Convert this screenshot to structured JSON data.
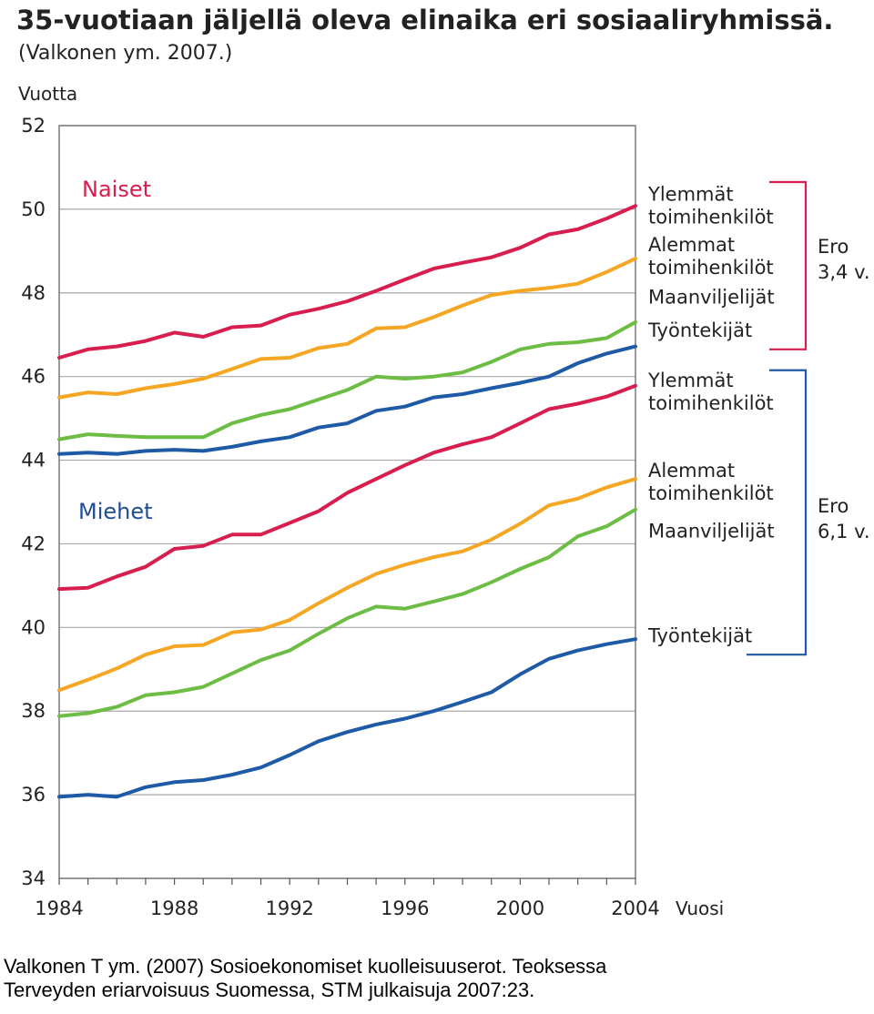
{
  "chart_data": {
    "type": "line",
    "title": "35-vuotiaan jäljellä oleva elinaika eri sosiaaliryhmissä.",
    "subtitle": "(Valkonen ym. 2007.)",
    "ylabel": "Vuotta",
    "xlabel": "Vuosi",
    "ylim": [
      34,
      52
    ],
    "xlim": [
      1984,
      2004
    ],
    "yticks": [
      "34",
      "36",
      "38",
      "40",
      "42",
      "44",
      "46",
      "48",
      "50",
      "52"
    ],
    "xticks": [
      "1984",
      "1988",
      "1992",
      "1996",
      "2000",
      "2004"
    ],
    "grid": true,
    "x": [
      1984,
      1985,
      1986,
      1987,
      1988,
      1989,
      1990,
      1991,
      1992,
      1993,
      1994,
      1995,
      1996,
      1997,
      1998,
      1999,
      2000,
      2001,
      2002,
      2003,
      2004
    ],
    "series": [
      {
        "name": "Naiset – Ylemmät toimihenkilöt",
        "group": "women",
        "color": "#d81e4f",
        "values": [
          46.45,
          46.65,
          46.72,
          46.85,
          47.05,
          46.95,
          47.18,
          47.22,
          47.48,
          47.62,
          47.8,
          48.05,
          48.32,
          48.58,
          48.72,
          48.85,
          49.08,
          49.4,
          49.52,
          49.78,
          50.08
        ]
      },
      {
        "name": "Naiset – Alemmat toimihenkilöt",
        "group": "women",
        "color": "#f5a623",
        "values": [
          45.5,
          45.62,
          45.58,
          45.72,
          45.82,
          45.95,
          46.18,
          46.42,
          46.45,
          46.68,
          46.78,
          47.15,
          47.18,
          47.42,
          47.7,
          47.95,
          48.05,
          48.12,
          48.22,
          48.5,
          48.82
        ]
      },
      {
        "name": "Naiset – Maanviljelijät",
        "group": "women",
        "color": "#6dbd45",
        "values": [
          44.5,
          44.62,
          44.58,
          44.55,
          44.55,
          44.55,
          44.88,
          45.08,
          45.22,
          45.45,
          45.68,
          46.0,
          45.95,
          46.0,
          46.1,
          46.35,
          46.65,
          46.78,
          46.82,
          46.92,
          47.3
        ]
      },
      {
        "name": "Naiset – Työntekijät",
        "group": "women",
        "color": "#1f5aa6",
        "values": [
          44.15,
          44.18,
          44.15,
          44.22,
          44.25,
          44.22,
          44.32,
          44.45,
          44.55,
          44.78,
          44.88,
          45.18,
          45.28,
          45.5,
          45.58,
          45.72,
          45.85,
          46.0,
          46.32,
          46.55,
          46.72
        ]
      },
      {
        "name": "Miehet – Ylemmät toimihenkilöt",
        "group": "men",
        "color": "#d81e4f",
        "values": [
          40.92,
          40.95,
          41.22,
          41.45,
          41.88,
          41.95,
          42.22,
          42.22,
          42.5,
          42.78,
          43.22,
          43.55,
          43.88,
          44.18,
          44.38,
          44.55,
          44.88,
          45.22,
          45.35,
          45.52,
          45.78
        ]
      },
      {
        "name": "Miehet – Alemmat toimihenkilöt",
        "group": "men",
        "color": "#f5a623",
        "values": [
          38.5,
          38.75,
          39.02,
          39.35,
          39.55,
          39.58,
          39.88,
          39.95,
          40.18,
          40.58,
          40.95,
          41.28,
          41.5,
          41.68,
          41.82,
          42.1,
          42.48,
          42.92,
          43.08,
          43.35,
          43.55
        ]
      },
      {
        "name": "Miehet – Maanviljelijät",
        "group": "men",
        "color": "#6dbd45",
        "values": [
          37.88,
          37.95,
          38.1,
          38.38,
          38.45,
          38.58,
          38.9,
          39.22,
          39.45,
          39.85,
          40.22,
          40.5,
          40.45,
          40.62,
          40.8,
          41.08,
          41.4,
          41.68,
          42.18,
          42.42,
          42.82
        ]
      },
      {
        "name": "Miehet – Työntekijät",
        "group": "men",
        "color": "#1f5aa6",
        "values": [
          35.95,
          36.0,
          35.95,
          36.18,
          36.3,
          36.35,
          36.48,
          36.65,
          36.95,
          37.28,
          37.5,
          37.68,
          37.82,
          38.0,
          38.22,
          38.45,
          38.88,
          39.25,
          39.45,
          39.6,
          39.72
        ]
      }
    ],
    "group_labels": [
      {
        "text": "Naiset",
        "color": "#d81e4f"
      },
      {
        "text": "Miehet",
        "color": "#1f4e96"
      }
    ],
    "right_labels_women": [
      {
        "lines": [
          "Ylemmät",
          "toimihenkilöt"
        ]
      },
      {
        "lines": [
          "Alemmat",
          "toimihenkilöt"
        ]
      },
      {
        "lines": [
          "Maanviljelijät"
        ]
      },
      {
        "lines": [
          "Työntekijät"
        ]
      }
    ],
    "right_labels_men": [
      {
        "lines": [
          "Ylemmät",
          "toimihenkilöt"
        ]
      },
      {
        "lines": [
          "Alemmat",
          "toimihenkilöt"
        ]
      },
      {
        "lines": [
          "Maanviljelijät"
        ]
      },
      {
        "lines": [
          "Työntekijät"
        ]
      }
    ],
    "brackets": [
      {
        "lines": [
          "Ero",
          "3,4 v."
        ],
        "color": "#d81e4f"
      },
      {
        "lines": [
          "Ero",
          "6,1 v."
        ],
        "color": "#1f5aa6"
      }
    ]
  },
  "caption": {
    "line1": "Valkonen T ym. (2007) Sosioekonomiset kuolleisuuserot. Teoksessa",
    "line2": "Terveyden eriarvoisuus Suomessa, STM julkaisuja 2007:23."
  }
}
